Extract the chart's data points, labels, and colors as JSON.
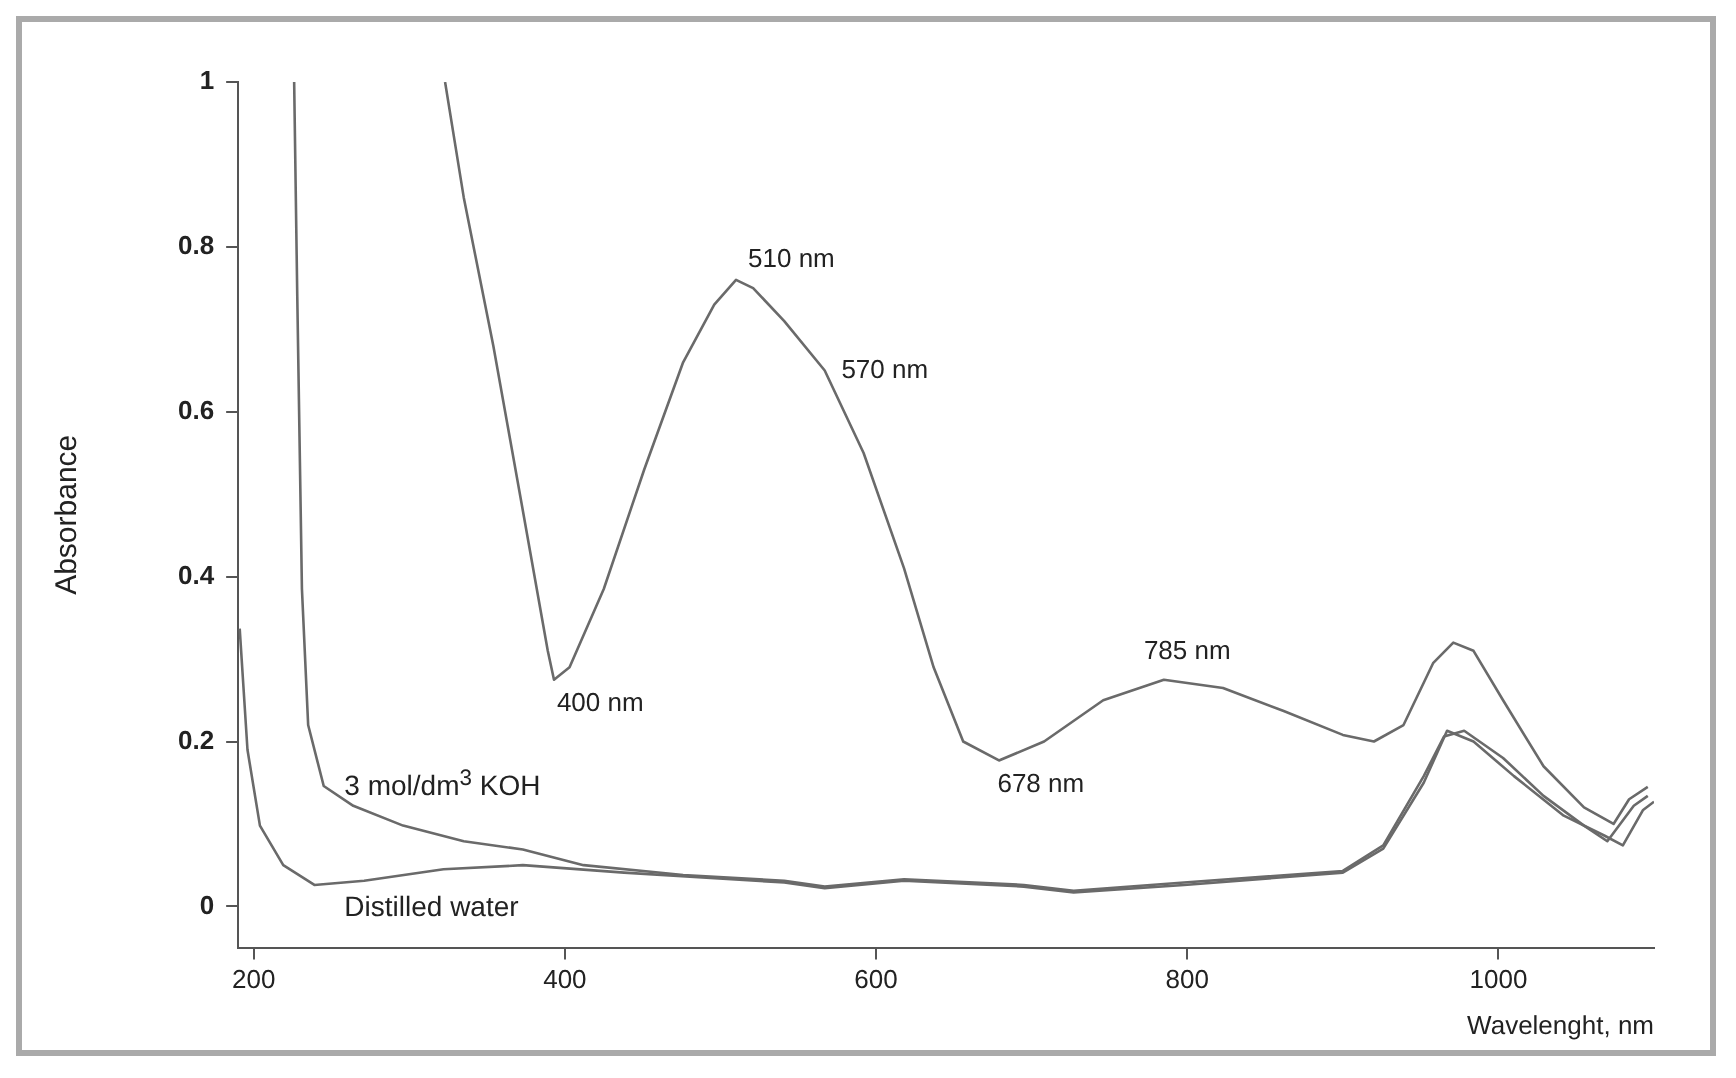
{
  "chart_data": {
    "type": "line",
    "xlabel": "Wavelenght, nm",
    "ylabel": "Absorbance",
    "xlim": [
      190,
      1100
    ],
    "ylim": [
      -0.05,
      1
    ],
    "xticks": [
      200,
      400,
      600,
      800,
      1000
    ],
    "yticks": [
      0,
      0.2,
      0.4,
      0.6,
      0.8,
      1
    ],
    "grid": false,
    "legend": false,
    "marker": "none",
    "line_style": "solid",
    "series": [
      {
        "color": "#6a6a6a",
        "x": [
          323,
          335,
          354,
          373,
          389,
          393,
          403,
          425,
          451,
          476,
          496,
          510,
          521,
          541,
          567,
          592,
          618,
          637,
          656,
          679,
          708,
          746,
          785,
          823,
          862,
          900,
          920,
          939,
          958,
          971,
          984,
          1003,
          1029,
          1055,
          1074,
          1084,
          1096
        ],
        "values": [
          1.0,
          0.86,
          0.68,
          0.48,
          0.31,
          0.275,
          0.29,
          0.385,
          0.53,
          0.66,
          0.73,
          0.76,
          0.75,
          0.71,
          0.65,
          0.55,
          0.41,
          0.29,
          0.2,
          0.177,
          0.2,
          0.25,
          0.275,
          0.265,
          0.237,
          0.208,
          0.2,
          0.22,
          0.295,
          0.32,
          0.31,
          0.25,
          0.17,
          0.12,
          0.1,
          0.13,
          0.145
        ]
      },
      {
        "name": "3 mol/dm$^{3}$ KOH",
        "color": "#6a6a6a",
        "x": [
          226,
          228,
          231,
          235,
          245,
          264,
          296,
          335,
          373,
          412,
          476,
          541,
          567,
          618,
          695,
          727,
          798,
          900,
          926,
          952,
          965,
          978,
          1003,
          1029,
          1055,
          1070,
          1087,
          1096
        ],
        "values": [
          1.0,
          0.74,
          0.385,
          0.22,
          0.146,
          0.122,
          0.098,
          0.079,
          0.069,
          0.05,
          0.038,
          0.031,
          0.024,
          0.033,
          0.026,
          0.019,
          0.029,
          0.043,
          0.074,
          0.158,
          0.206,
          0.213,
          0.18,
          0.134,
          0.098,
          0.079,
          0.122,
          0.134
        ]
      },
      {
        "name": "Distilled water",
        "color": "#6a6a6a",
        "x": [
          191,
          196,
          204,
          219,
          239,
          271,
          322,
          373,
          438,
          541,
          567,
          618,
          695,
          727,
          798,
          900,
          926,
          952,
          967,
          984,
          1010,
          1042,
          1068,
          1080,
          1093,
          1100
        ],
        "values": [
          0.337,
          0.19,
          0.098,
          0.05,
          0.026,
          0.031,
          0.045,
          0.05,
          0.041,
          0.029,
          0.022,
          0.031,
          0.024,
          0.017,
          0.026,
          0.041,
          0.07,
          0.15,
          0.213,
          0.2,
          0.158,
          0.11,
          0.086,
          0.074,
          0.117,
          0.127
        ]
      }
    ],
    "annotations": [
      {
        "text": "510 nm",
        "x": 510,
        "y": 0.76
      },
      {
        "text": "570 nm",
        "x": 570,
        "y": 0.64
      },
      {
        "text": "400 nm",
        "x": 400,
        "y": 0.275
      },
      {
        "text": "678 nm",
        "x": 678,
        "y": 0.177
      },
      {
        "text": "785 nm",
        "x": 785,
        "y": 0.275
      }
    ]
  }
}
